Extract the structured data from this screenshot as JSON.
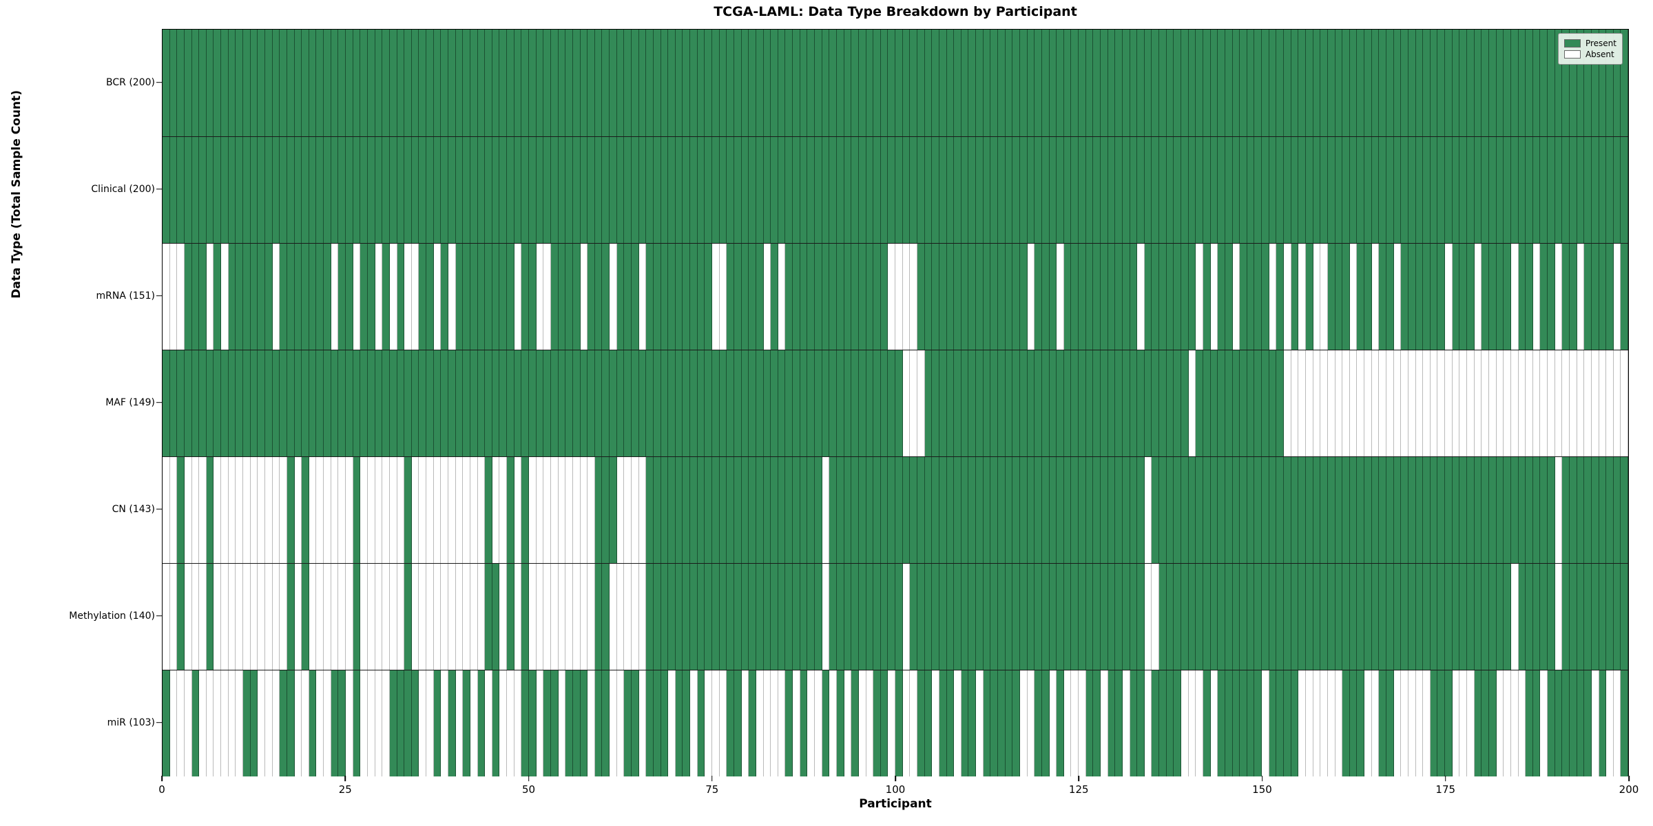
{
  "title": "TCGA-LAML: Data Type Breakdown by Participant",
  "xlabel": "Participant",
  "ylabel": "Data Type (Total Sample Count)",
  "legend": {
    "present_label": "Present",
    "absent_label": "Absent"
  },
  "colors": {
    "present": "#338a57",
    "absent": "#ffffff",
    "present_border": "rgba(15,50,30,0.65)",
    "absent_border": "rgba(130,130,130,0.55)",
    "row_separator": "#1a1a1a",
    "plot_border": "#000000",
    "legend_bg": "#edf5ee"
  },
  "chart_data": {
    "type": "heatmap",
    "title": "TCGA-LAML: Data Type Breakdown by Participant",
    "xlabel": "Participant",
    "ylabel": "Data Type (Total Sample Count)",
    "x_axis": {
      "min": 0,
      "max": 200,
      "ticks": [
        0,
        25,
        50,
        75,
        100,
        125,
        150,
        175,
        200
      ]
    },
    "n_participants": 200,
    "legend_position": "upper right",
    "encoding": {
      "present_value": 1,
      "absent_value": 0,
      "present_color": "#338a57",
      "absent_color": "#ffffff"
    },
    "rows": [
      {
        "label": "BCR (200)",
        "name": "BCR",
        "total_present": 200,
        "absent_cols": []
      },
      {
        "label": "Clinical (200)",
        "name": "Clinical",
        "total_present": 200,
        "absent_cols": []
      },
      {
        "label": "mRNA (151)",
        "name": "mRNA",
        "total_present": 151,
        "absent_cols": [
          0,
          1,
          2,
          6,
          8,
          15,
          23,
          26,
          29,
          31,
          33,
          34,
          37,
          39,
          48,
          51,
          52,
          57,
          61,
          65,
          75,
          76,
          82,
          84,
          99,
          100,
          101,
          102,
          118,
          122,
          133,
          141,
          143,
          146,
          151,
          153,
          155,
          157,
          158,
          162,
          165,
          168,
          175,
          179,
          184,
          187,
          190,
          193,
          198
        ]
      },
      {
        "label": "MAF (149)",
        "name": "MAF",
        "total_present": 149,
        "absent_cols": [
          101,
          102,
          103,
          140,
          153,
          154,
          155,
          156,
          157,
          158,
          159,
          160,
          161,
          162,
          163,
          164,
          165,
          166,
          167,
          168,
          169,
          170,
          171,
          172,
          173,
          174,
          175,
          176,
          177,
          178,
          179,
          180,
          181,
          182,
          183,
          184,
          185,
          186,
          187,
          188,
          189,
          190,
          191,
          192,
          193,
          194,
          195,
          196,
          197,
          198,
          199
        ]
      },
      {
        "label": "CN (143)",
        "name": "CN",
        "total_present": 143,
        "absent_cols": [
          0,
          1,
          3,
          4,
          5,
          7,
          8,
          9,
          10,
          11,
          12,
          13,
          14,
          15,
          16,
          18,
          20,
          21,
          22,
          23,
          24,
          25,
          27,
          28,
          29,
          30,
          31,
          32,
          34,
          35,
          36,
          37,
          38,
          39,
          40,
          41,
          42,
          43,
          45,
          46,
          48,
          50,
          51,
          52,
          53,
          54,
          55,
          56,
          57,
          58,
          62,
          63,
          64,
          65,
          90,
          134,
          190
        ]
      },
      {
        "label": "Methylation (140)",
        "name": "Methylation",
        "total_present": 140,
        "absent_cols": [
          0,
          1,
          3,
          4,
          5,
          7,
          8,
          9,
          10,
          11,
          12,
          13,
          14,
          15,
          16,
          18,
          20,
          21,
          22,
          23,
          24,
          25,
          27,
          28,
          29,
          30,
          31,
          32,
          34,
          35,
          36,
          37,
          38,
          39,
          40,
          41,
          42,
          43,
          46,
          48,
          50,
          51,
          52,
          53,
          54,
          55,
          56,
          57,
          58,
          61,
          62,
          63,
          64,
          65,
          90,
          101,
          134,
          135,
          184,
          190
        ]
      },
      {
        "label": "miR (103)",
        "name": "miR",
        "total_present": 103,
        "absent_cols": [
          1,
          2,
          3,
          5,
          6,
          7,
          8,
          9,
          10,
          13,
          14,
          15,
          18,
          19,
          21,
          22,
          25,
          27,
          28,
          29,
          30,
          35,
          36,
          38,
          40,
          42,
          44,
          46,
          47,
          48,
          51,
          54,
          58,
          61,
          62,
          65,
          69,
          72,
          74,
          75,
          76,
          79,
          81,
          82,
          83,
          84,
          86,
          88,
          89,
          91,
          93,
          95,
          96,
          99,
          101,
          102,
          105,
          108,
          111,
          117,
          118,
          121,
          123,
          124,
          125,
          128,
          131,
          134,
          139,
          140,
          141,
          143,
          150,
          155,
          156,
          157,
          158,
          159,
          160,
          164,
          165,
          168,
          169,
          170,
          171,
          172,
          176,
          177,
          178,
          182,
          183,
          184,
          185,
          188,
          195,
          197,
          198
        ]
      }
    ]
  }
}
